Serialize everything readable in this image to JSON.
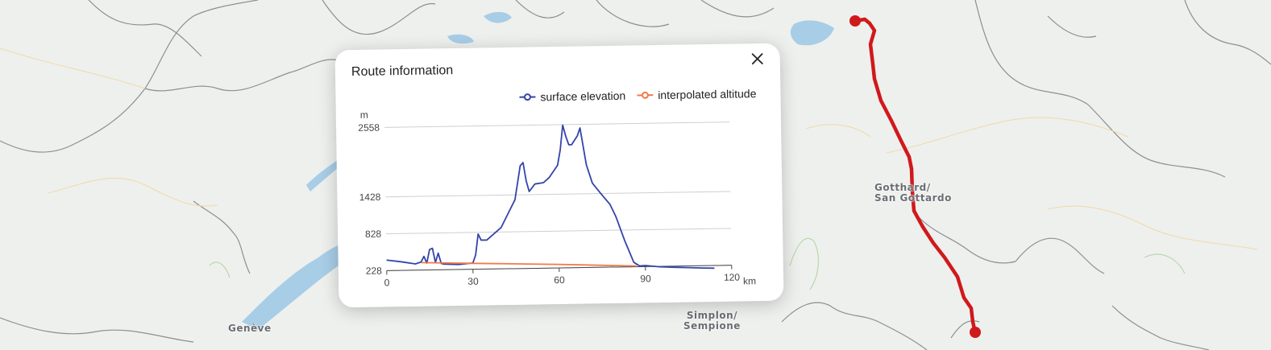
{
  "map": {
    "labels": {
      "geneve": "Genève",
      "gotthard_line1": "Gotthard/",
      "gotthard_line2": "San Gottardo",
      "simplon_line1": "Simplon/",
      "simplon_line2": "Sempione"
    },
    "colors": {
      "route": "#d0191b",
      "border": "#8e8e8e",
      "lake": "#a8cde6",
      "road": "#f1d9a6",
      "green": "#b9d8a8"
    }
  },
  "popup": {
    "title": "Route information",
    "close_icon": "close-icon"
  },
  "chart_data": {
    "type": "line",
    "title": "",
    "xlabel": "km",
    "ylabel": "m",
    "x_ticks": [
      0,
      30,
      60,
      90,
      120
    ],
    "y_ticks": [
      228,
      828,
      1428,
      2558
    ],
    "xlim": [
      0,
      120
    ],
    "ylim": [
      228,
      2558
    ],
    "grid": true,
    "legend_position": "top-right",
    "series": [
      {
        "name": "surface elevation",
        "color": "#3344aa",
        "x": [
          0,
          5,
          10,
          12,
          13,
          14,
          15,
          16,
          17,
          18,
          19,
          20,
          25,
          30,
          31,
          32,
          33,
          35,
          40,
          45,
          47,
          48,
          49,
          50,
          52,
          55,
          57,
          60,
          61,
          62,
          63,
          64,
          65,
          66,
          67,
          68,
          69,
          70,
          72,
          75,
          78,
          80,
          83,
          86,
          87,
          88,
          90,
          95,
          100,
          105,
          110,
          114
        ],
        "y": [
          400,
          370,
          330,
          360,
          450,
          340,
          560,
          580,
          350,
          500,
          330,
          320,
          310,
          330,
          460,
          800,
          700,
          700,
          900,
          1350,
          1900,
          1950,
          1650,
          1480,
          1600,
          1620,
          1700,
          1900,
          2150,
          2550,
          2370,
          2230,
          2230,
          2300,
          2370,
          2500,
          2200,
          1900,
          1600,
          1420,
          1250,
          1050,
          650,
          300,
          270,
          240,
          245,
          220,
          210,
          200,
          190,
          185
        ]
      },
      {
        "name": "interpolated altitude",
        "color": "#f07a4a",
        "x": [
          12,
          30,
          60,
          87
        ],
        "y": [
          350,
          325,
          285,
          240
        ]
      }
    ]
  }
}
